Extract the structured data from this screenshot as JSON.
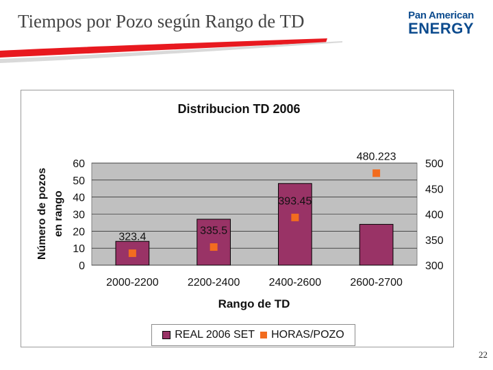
{
  "slide": {
    "title": "Tiempos por Pozo según Rango de TD",
    "page_number": "22"
  },
  "logo": {
    "line1": "Pan American",
    "line2": "ENERGY"
  },
  "colors": {
    "bar": "#993366",
    "marker": "#f26c1f",
    "plot_bg": "#c0c0c0",
    "swoosh": "#e8191f",
    "logo_blue": "#0c4b8e"
  },
  "chart_data": {
    "type": "bar",
    "title": "Distribucion TD 2006",
    "xlabel": "Rango de TD",
    "ylabel": "Número de pozos en rango",
    "ylabel_lines": [
      "Número de pozos",
      "en rango"
    ],
    "categories": [
      "2000-2200",
      "2200-2400",
      "2400-2600",
      "2600-2700"
    ],
    "ylim": [
      0,
      60
    ],
    "yticks": [
      "0",
      "10",
      "20",
      "30",
      "40",
      "50",
      "60"
    ],
    "y2lim": [
      300,
      500
    ],
    "y2ticks": [
      "300",
      "350",
      "400",
      "450",
      "500"
    ],
    "grid": true,
    "legend_position": "bottom",
    "series": [
      {
        "name": "REAL 2006 SET",
        "kind": "bar",
        "axis": "left",
        "values": [
          14,
          27,
          48,
          24
        ]
      },
      {
        "name": "HORAS/POZO",
        "kind": "marker",
        "axis": "right",
        "values": [
          323.4,
          335.5,
          393.45,
          480.223
        ],
        "plotted_values": [
          323.4,
          335.5,
          393.45,
          480.223
        ],
        "labels": [
          "323.4",
          "335.5",
          "393.45",
          "480.223"
        ]
      }
    ]
  }
}
